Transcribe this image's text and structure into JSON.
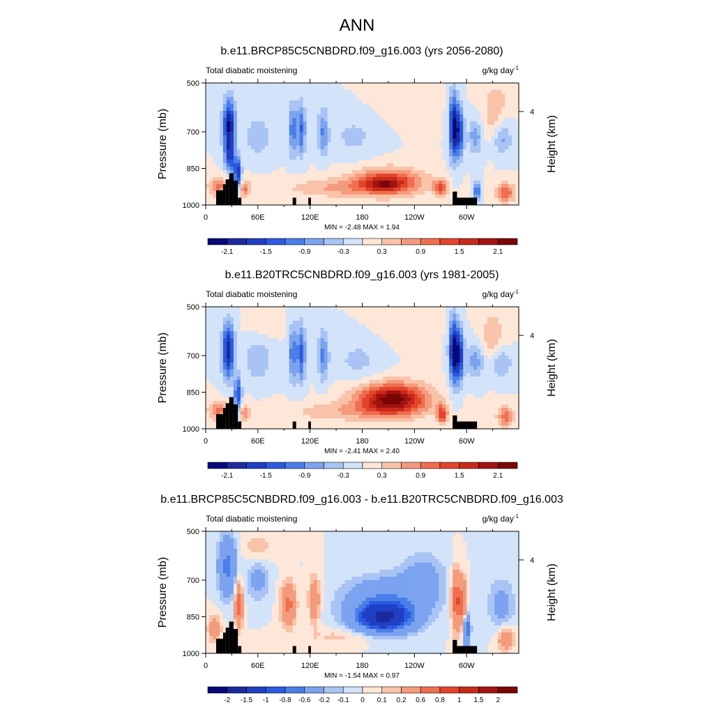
{
  "main_title": "ANN",
  "chart_data": [
    {
      "type": "heatmap",
      "title": "b.e11.BRCP85C5CNBDRD.f09_g16.003 (yrs 2056-2080)",
      "field_label": "Total diabatic moistening",
      "units_label": "g/kg day",
      "units_exponent": "-1",
      "ylabel": "Pressure (mb)",
      "y2label": "Height (km)",
      "y_ticks": [
        "500",
        "700",
        "850",
        "1000"
      ],
      "y_tick_values": [
        500,
        700,
        850,
        1000
      ],
      "y2_ticks": [
        "4"
      ],
      "x_ticks": [
        "0",
        "60E",
        "120E",
        "180",
        "120W",
        "60W"
      ],
      "x_tick_values": [
        0,
        60,
        120,
        180,
        240,
        300
      ],
      "xlim": [
        0,
        360
      ],
      "ylim": [
        500,
        1000
      ],
      "stats": "MIN =  -2.48  MAX =   1.94",
      "min": -2.48,
      "max": 1.94,
      "colorbar_labels": [
        "-2.1",
        "-1.5",
        "-0.9",
        "-0.3",
        "0.3",
        "0.9",
        "1.5",
        "2.1"
      ],
      "colorbar_levels": [
        -2.4,
        -2.1,
        -1.8,
        -1.5,
        -1.2,
        -0.9,
        -0.6,
        -0.3,
        0,
        0.3,
        0.6,
        0.9,
        1.2,
        1.5,
        1.8,
        2.1,
        2.4
      ],
      "features": [
        {
          "lon": 27,
          "p": 680,
          "lon_width": 7,
          "p_width": 110,
          "value": -2.2
        },
        {
          "lon": 28,
          "p": 810,
          "lon_width": 6,
          "p_width": 60,
          "value": -1.2
        },
        {
          "lon": 37,
          "p": 870,
          "lon_width": 4,
          "p_width": 60,
          "value": -1.8
        },
        {
          "lon": 100,
          "p": 690,
          "lon_width": 5,
          "p_width": 110,
          "value": -1.1
        },
        {
          "lon": 110,
          "p": 690,
          "lon_width": 5,
          "p_width": 110,
          "value": -1.2
        },
        {
          "lon": 135,
          "p": 700,
          "lon_width": 6,
          "p_width": 100,
          "value": -0.9
        },
        {
          "lon": 60,
          "p": 720,
          "lon_width": 14,
          "p_width": 80,
          "value": -0.6
        },
        {
          "lon": 170,
          "p": 720,
          "lon_width": 24,
          "p_width": 80,
          "value": -0.4
        },
        {
          "lon": 285,
          "p": 680,
          "lon_width": 5,
          "p_width": 130,
          "value": -2.1
        },
        {
          "lon": 292,
          "p": 700,
          "lon_width": 5,
          "p_width": 100,
          "value": -1.6
        },
        {
          "lon": 310,
          "p": 720,
          "lon_width": 8,
          "p_width": 70,
          "value": -0.8
        },
        {
          "lon": 340,
          "p": 730,
          "lon_width": 12,
          "p_width": 60,
          "value": -0.7
        },
        {
          "lon": 312,
          "p": 940,
          "lon_width": 3,
          "p_width": 40,
          "value": -1.5
        },
        {
          "lon": 210,
          "p": 905,
          "lon_width": 40,
          "p_width": 55,
          "value": 1.5
        },
        {
          "lon": 205,
          "p": 915,
          "lon_width": 20,
          "p_width": 25,
          "value": 0.6
        },
        {
          "lon": 150,
          "p": 930,
          "lon_width": 60,
          "p_width": 40,
          "value": 0.6
        },
        {
          "lon": 15,
          "p": 925,
          "lon_width": 12,
          "p_width": 40,
          "value": 1.0
        },
        {
          "lon": 45,
          "p": 935,
          "lon_width": 6,
          "p_width": 40,
          "value": 0.9
        },
        {
          "lon": 270,
          "p": 930,
          "lon_width": 8,
          "p_width": 35,
          "value": 1.3
        },
        {
          "lon": 345,
          "p": 950,
          "lon_width": 10,
          "p_width": 40,
          "value": 1.2
        },
        {
          "lon": 330,
          "p": 650,
          "lon_width": 10,
          "p_width": 100,
          "value": 0.5
        },
        {
          "lon": 230,
          "p": 560,
          "lon_width": 30,
          "p_width": 80,
          "value": 0.2
        },
        {
          "lon": 340,
          "p": 560,
          "lon_width": 20,
          "p_width": 60,
          "value": 0.3
        }
      ]
    },
    {
      "type": "heatmap",
      "title": "b.e11.B20TRC5CNBDRD.f09_g16.003 (yrs 1981-2005)",
      "field_label": "Total diabatic moistening",
      "units_label": "g/kg day",
      "units_exponent": "-1",
      "ylabel": "Pressure (mb)",
      "y2label": "Height (km)",
      "y_ticks": [
        "500",
        "700",
        "850",
        "1000"
      ],
      "y_tick_values": [
        500,
        700,
        850,
        1000
      ],
      "y2_ticks": [
        "4"
      ],
      "x_ticks": [
        "0",
        "60E",
        "120E",
        "180",
        "120W",
        "60W"
      ],
      "x_tick_values": [
        0,
        60,
        120,
        180,
        240,
        300
      ],
      "xlim": [
        0,
        360
      ],
      "ylim": [
        500,
        1000
      ],
      "stats": "MIN =  -2.41  MAX =   2.40",
      "min": -2.41,
      "max": 2.4,
      "colorbar_labels": [
        "-2.1",
        "-1.5",
        "-0.9",
        "-0.3",
        "0.3",
        "0.9",
        "1.5",
        "2.1"
      ],
      "colorbar_levels": [
        -2.4,
        -2.1,
        -1.8,
        -1.5,
        -1.2,
        -0.9,
        -0.6,
        -0.3,
        0,
        0.3,
        0.6,
        0.9,
        1.2,
        1.5,
        1.8,
        2.1,
        2.4
      ],
      "features": [
        {
          "lon": 26,
          "p": 680,
          "lon_width": 7,
          "p_width": 110,
          "value": -2.0
        },
        {
          "lon": 37,
          "p": 860,
          "lon_width": 4,
          "p_width": 70,
          "value": -1.6
        },
        {
          "lon": 100,
          "p": 690,
          "lon_width": 5,
          "p_width": 120,
          "value": -1.1
        },
        {
          "lon": 110,
          "p": 690,
          "lon_width": 5,
          "p_width": 120,
          "value": -1.3
        },
        {
          "lon": 135,
          "p": 700,
          "lon_width": 6,
          "p_width": 100,
          "value": -1.0
        },
        {
          "lon": 60,
          "p": 720,
          "lon_width": 16,
          "p_width": 80,
          "value": -0.6
        },
        {
          "lon": 175,
          "p": 720,
          "lon_width": 25,
          "p_width": 80,
          "value": -0.4
        },
        {
          "lon": 285,
          "p": 680,
          "lon_width": 5,
          "p_width": 130,
          "value": -2.2
        },
        {
          "lon": 292,
          "p": 700,
          "lon_width": 5,
          "p_width": 110,
          "value": -1.7
        },
        {
          "lon": 310,
          "p": 720,
          "lon_width": 10,
          "p_width": 70,
          "value": -0.8
        },
        {
          "lon": 340,
          "p": 730,
          "lon_width": 12,
          "p_width": 60,
          "value": -0.7
        },
        {
          "lon": 215,
          "p": 880,
          "lon_width": 40,
          "p_width": 65,
          "value": 2.3
        },
        {
          "lon": 150,
          "p": 930,
          "lon_width": 60,
          "p_width": 40,
          "value": 0.5
        },
        {
          "lon": 15,
          "p": 925,
          "lon_width": 12,
          "p_width": 40,
          "value": 1.0
        },
        {
          "lon": 45,
          "p": 935,
          "lon_width": 6,
          "p_width": 40,
          "value": 0.9
        },
        {
          "lon": 272,
          "p": 940,
          "lon_width": 6,
          "p_width": 40,
          "value": 1.4
        },
        {
          "lon": 345,
          "p": 950,
          "lon_width": 10,
          "p_width": 40,
          "value": 1.1
        },
        {
          "lon": 330,
          "p": 620,
          "lon_width": 14,
          "p_width": 110,
          "value": 0.5
        },
        {
          "lon": 230,
          "p": 560,
          "lon_width": 30,
          "p_width": 80,
          "value": 0.2
        },
        {
          "lon": 70,
          "p": 560,
          "lon_width": 20,
          "p_width": 60,
          "value": 0.2
        }
      ]
    },
    {
      "type": "heatmap",
      "title": "b.e11.BRCP85C5CNBDRD.f09_g16.003 - b.e11.B20TRC5CNBDRD.f09_g16.003",
      "field_label": "Total diabatic moistening",
      "units_label": "g/kg day",
      "units_exponent": "-1",
      "ylabel": "Pressure (mb)",
      "y2label": "Height (km)",
      "y_ticks": [
        "500",
        "700",
        "850",
        "1000"
      ],
      "y_tick_values": [
        500,
        700,
        850,
        1000
      ],
      "y2_ticks": [
        "4"
      ],
      "x_ticks": [
        "0",
        "60E",
        "120E",
        "180",
        "120W",
        "60W"
      ],
      "x_tick_values": [
        0,
        60,
        120,
        180,
        240,
        300
      ],
      "xlim": [
        0,
        360
      ],
      "ylim": [
        500,
        1000
      ],
      "stats": "MIN =  -1.54  MAX =   0.97",
      "min": -1.54,
      "max": 0.97,
      "colorbar_labels": [
        "-2",
        "-1.5",
        "-1",
        "-0.8",
        "-0.6",
        "-0.2",
        "-0.1",
        "0",
        "0.1",
        "0.2",
        "0.6",
        "0.8",
        "1",
        "1.5",
        "2"
      ],
      "colorbar_levels": [
        -2.5,
        -2,
        -1.5,
        -1,
        -0.8,
        -0.6,
        -0.2,
        -0.1,
        0,
        0.1,
        0.2,
        0.6,
        0.8,
        1,
        1.5,
        2,
        2.5
      ],
      "features": [
        {
          "lon": 205,
          "p": 855,
          "lon_width": 32,
          "p_width": 60,
          "value": -1.4
        },
        {
          "lon": 205,
          "p": 780,
          "lon_width": 45,
          "p_width": 90,
          "value": -0.5
        },
        {
          "lon": 250,
          "p": 700,
          "lon_width": 25,
          "p_width": 110,
          "value": -0.3
        },
        {
          "lon": 25,
          "p": 640,
          "lon_width": 10,
          "p_width": 120,
          "value": -0.7
        },
        {
          "lon": 60,
          "p": 700,
          "lon_width": 12,
          "p_width": 80,
          "value": -0.3
        },
        {
          "lon": 300,
          "p": 900,
          "lon_width": 4,
          "p_width": 60,
          "value": -1.0
        },
        {
          "lon": 340,
          "p": 800,
          "lon_width": 15,
          "p_width": 100,
          "value": -0.3
        },
        {
          "lon": 95,
          "p": 800,
          "lon_width": 8,
          "p_width": 80,
          "value": 0.7
        },
        {
          "lon": 125,
          "p": 780,
          "lon_width": 6,
          "p_width": 90,
          "value": 0.5
        },
        {
          "lon": 38,
          "p": 800,
          "lon_width": 4,
          "p_width": 90,
          "value": 0.8
        },
        {
          "lon": 288,
          "p": 780,
          "lon_width": 5,
          "p_width": 110,
          "value": 0.9
        },
        {
          "lon": 296,
          "p": 800,
          "lon_width": 4,
          "p_width": 100,
          "value": 0.7
        },
        {
          "lon": 165,
          "p": 930,
          "lon_width": 50,
          "p_width": 35,
          "value": 0.15
        },
        {
          "lon": 10,
          "p": 900,
          "lon_width": 8,
          "p_width": 60,
          "value": 0.3
        },
        {
          "lon": 345,
          "p": 940,
          "lon_width": 10,
          "p_width": 50,
          "value": 0.4
        },
        {
          "lon": 60,
          "p": 560,
          "lon_width": 20,
          "p_width": 60,
          "value": 0.15
        }
      ]
    }
  ],
  "terrain": [
    {
      "lon0": 12,
      "lon1": 20,
      "p_top": 940
    },
    {
      "lon0": 20,
      "lon1": 23,
      "p_top": 915
    },
    {
      "lon0": 23,
      "lon1": 27,
      "p_top": 895
    },
    {
      "lon0": 27,
      "lon1": 32,
      "p_top": 870
    },
    {
      "lon0": 32,
      "lon1": 37,
      "p_top": 900
    },
    {
      "lon0": 37,
      "lon1": 41,
      "p_top": 970
    },
    {
      "lon0": 100,
      "lon1": 104,
      "p_top": 970
    },
    {
      "lon0": 118,
      "lon1": 121,
      "p_top": 970
    },
    {
      "lon0": 284,
      "lon1": 312,
      "p_top": 970
    },
    {
      "lon0": 284,
      "lon1": 289,
      "p_top": 945
    }
  ]
}
